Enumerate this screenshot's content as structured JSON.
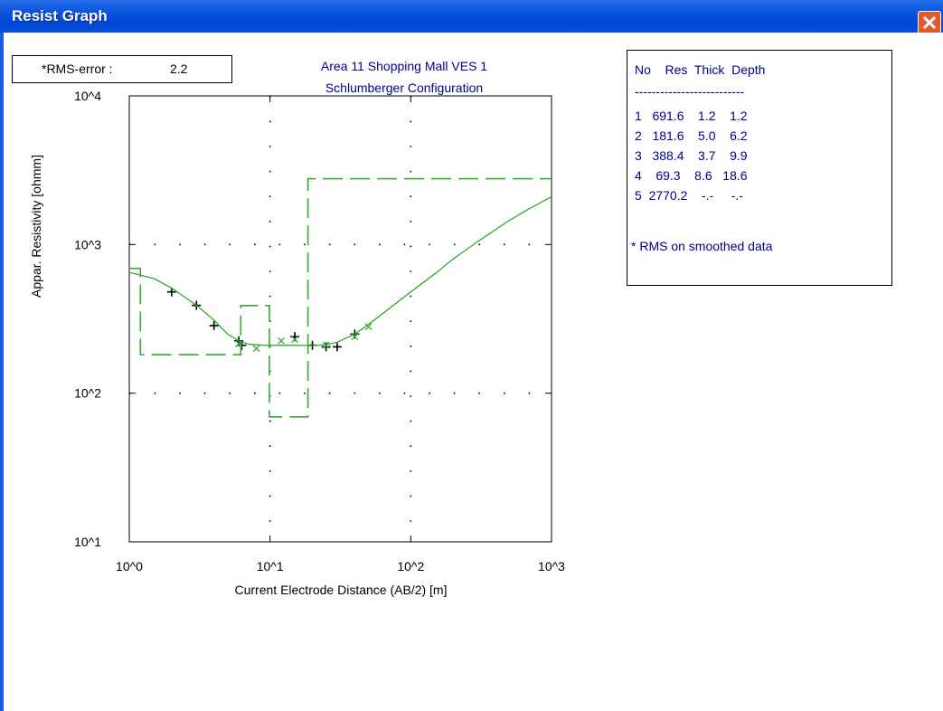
{
  "window": {
    "title": "Resist Graph",
    "close_icon": "close-x-icon"
  },
  "rms": {
    "label": "*RMS-error :",
    "value": "2.2"
  },
  "model_table": {
    "header": "No    Res  Thick  Depth",
    "separator": "--------------------------",
    "rows": [
      "1   691.6    1.2    1.2",
      "2   181.6    5.0    6.2",
      "3   388.4    3.7    9.9",
      "4    69.3    8.6   18.6",
      "5  2770.2    -.-     -.-"
    ],
    "note": "* RMS on smoothed data"
  },
  "colors": {
    "curve": "#33aa33",
    "title_text": "#00008b",
    "titlebar": "#0a55e0",
    "close_button": "#e05a2e"
  },
  "chart_data": {
    "type": "scatter",
    "title": [
      "Area 11 Shopping Mall VES 1",
      "Schlumberger Configuration"
    ],
    "xlabel": "Current Electrode Distance (AB/2) [m]",
    "ylabel": "Appar. Resistivity [ohmm]",
    "xscale": "log",
    "yscale": "log",
    "xlim": [
      1,
      1000
    ],
    "ylim": [
      10,
      10000
    ],
    "x_tick_labels": [
      "10^0",
      "10^1",
      "10^2",
      "10^3"
    ],
    "y_tick_labels": [
      "10^1",
      "10^2",
      "10^3",
      "10^4"
    ],
    "grid": true,
    "series": [
      {
        "kind": "observed",
        "marker": "+",
        "color": "#000000",
        "points": [
          [
            2.0,
            480
          ],
          [
            3.0,
            390
          ],
          [
            4.0,
            285
          ],
          [
            6.0,
            225
          ],
          [
            6.3,
            210
          ],
          [
            15.0,
            240
          ],
          [
            20.0,
            210
          ],
          [
            25.0,
            205
          ],
          [
            30.0,
            205
          ],
          [
            40.0,
            250
          ]
        ]
      },
      {
        "kind": "smoothed",
        "marker": "x",
        "color": "#33aa33",
        "points": [
          [
            6.0,
            215
          ],
          [
            8.0,
            200
          ],
          [
            12.0,
            225
          ],
          [
            15.0,
            230
          ],
          [
            25.0,
            210
          ],
          [
            40.0,
            240
          ],
          [
            50.0,
            280
          ]
        ]
      },
      {
        "kind": "calculated",
        "style": "line",
        "color": "#33aa33",
        "points": [
          [
            1,
            650
          ],
          [
            1.5,
            590
          ],
          [
            2,
            510
          ],
          [
            3,
            390
          ],
          [
            4,
            310
          ],
          [
            5,
            250
          ],
          [
            6,
            225
          ],
          [
            7,
            214
          ],
          [
            9,
            210
          ],
          [
            12,
            210
          ],
          [
            15,
            210
          ],
          [
            20,
            209
          ],
          [
            25,
            212
          ],
          [
            30,
            220
          ],
          [
            40,
            250
          ],
          [
            50,
            290
          ],
          [
            70,
            370
          ],
          [
            100,
            480
          ],
          [
            150,
            640
          ],
          [
            200,
            800
          ],
          [
            300,
            1050
          ],
          [
            500,
            1450
          ],
          [
            700,
            1750
          ],
          [
            1000,
            2100
          ]
        ]
      },
      {
        "kind": "layer_model",
        "style": "dashed-step",
        "color": "#33aa33",
        "points": [
          [
            1,
            691.6
          ],
          [
            1.2,
            691.6
          ],
          [
            1.2,
            181.6
          ],
          [
            6.2,
            181.6
          ],
          [
            6.2,
            388.4
          ],
          [
            9.9,
            388.4
          ],
          [
            9.9,
            69.3
          ],
          [
            18.6,
            69.3
          ],
          [
            18.6,
            2770.2
          ],
          [
            1000,
            2770.2
          ]
        ]
      }
    ]
  }
}
